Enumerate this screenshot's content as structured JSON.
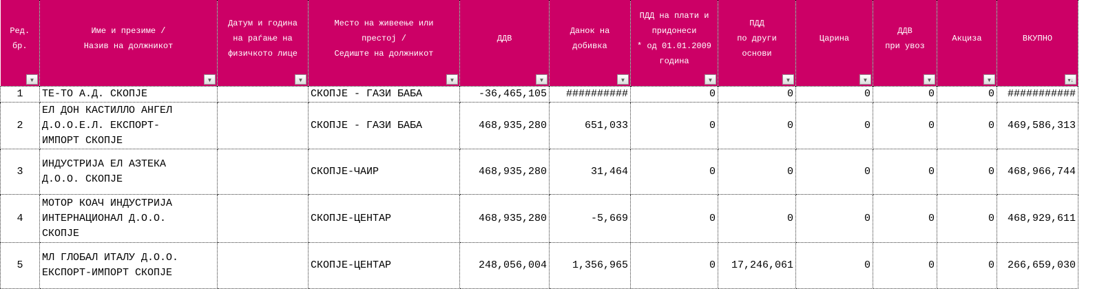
{
  "headers": [
    "Ред.\nбр.",
    "Име и презиме /\nНазив на должникот",
    "Датум и година\nна раѓање на\nфизичкото лице",
    "Место на живеење или\nпрестој /\nСедиште на должникот",
    "ДДВ",
    "Данок на\nдобивка",
    "ПДД на плати и\nпридонеси\n* од 01.01.2009\nгодина",
    "ПДД\nпо други\nоснови",
    "Царина",
    "ДДВ\nпри увоз",
    "Акциза",
    "ВКУПНО"
  ],
  "rows": [
    [
      "1",
      "ТЕ-ТО А.Д. СКОПЈЕ",
      "",
      "СКОПЈЕ - ГАЗИ БАБА",
      "-36,465,105",
      "##########",
      "0",
      "0",
      "0",
      "0",
      "0",
      "###########"
    ],
    [
      "2",
      "ЕЛ ДОН КАСТИЛЛО АНГЕЛ\nД.О.О.Е.Л. ЕКСПОРТ-\nИМПОРТ СКОПЈЕ",
      "",
      "СКОПЈЕ - ГАЗИ БАБА",
      "468,935,280",
      "651,033",
      "0",
      "0",
      "0",
      "0",
      "0",
      "469,586,313"
    ],
    [
      "3",
      "ИНДУСТРИЈА ЕЛ АЗТЕКА\nД.О.О. СКОПЈЕ",
      "",
      "СКОПЈЕ-ЧАИР",
      "468,935,280",
      "31,464",
      "0",
      "0",
      "0",
      "0",
      "0",
      "468,966,744"
    ],
    [
      "4",
      "МОТОР КОАЧ ИНДУСТРИЈА\nИНТЕРНАЦИОНАЛ Д.О.О.\nСКОПЈЕ",
      "",
      "СКОПЈЕ-ЦЕНТАР",
      "468,935,280",
      "-5,669",
      "0",
      "0",
      "0",
      "0",
      "0",
      "468,929,611"
    ],
    [
      "5",
      "МЛ ГЛОБАЛ ИТАЛУ Д.О.О.\nЕКСПОРТ-ИМПОРТ СКОПЈЕ",
      "",
      "СКОПЈЕ-ЦЕНТАР",
      "248,056,004",
      "1,356,965",
      "0",
      "17,246,061",
      "0",
      "0",
      "0",
      "266,659,030"
    ]
  ],
  "filter_icon": "▼",
  "sort_icon": "↓"
}
